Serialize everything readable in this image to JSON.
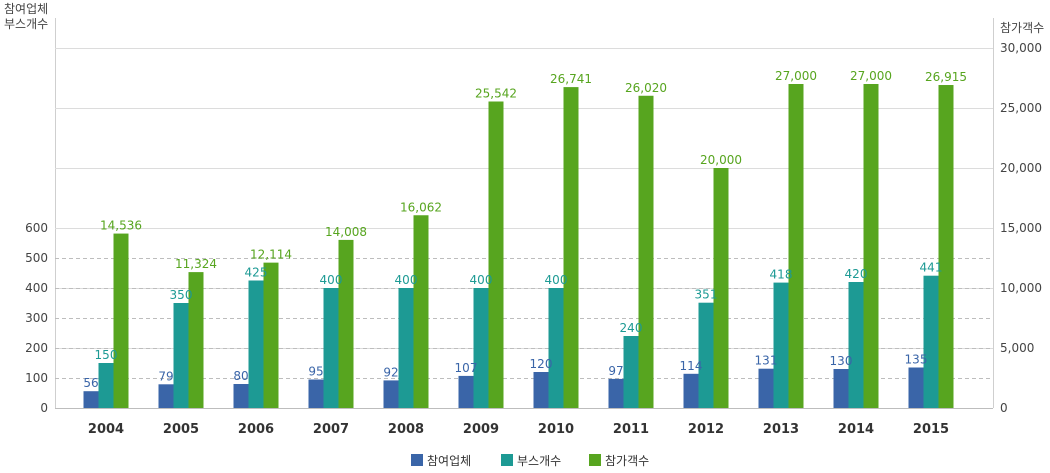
{
  "chart_data": {
    "type": "bar",
    "title": "",
    "categories": [
      "2004",
      "2005",
      "2006",
      "2007",
      "2008",
      "2009",
      "2010",
      "2011",
      "2012",
      "2013",
      "2014",
      "2015"
    ],
    "left_axis": {
      "label_lines": [
        "참여업체",
        "부스개수"
      ],
      "range": [
        0,
        600
      ],
      "ticks": [
        0,
        100,
        200,
        300,
        400,
        500,
        600
      ],
      "tick_labels": [
        "0",
        "100",
        "200",
        "300",
        "400",
        "500",
        "600"
      ]
    },
    "right_axis": {
      "label": "참가객수",
      "range": [
        0,
        30000
      ],
      "ticks": [
        0,
        5000,
        10000,
        15000,
        20000,
        25000,
        30000
      ],
      "tick_labels": [
        "0",
        "5,000",
        "10,000",
        "15,000",
        "20,000",
        "25,000",
        "30,000"
      ]
    },
    "series": [
      {
        "name": "참여업체",
        "axis": "left",
        "color": "#3a65a8",
        "label_color": "#3a65a8",
        "values": [
          56,
          79,
          80,
          95,
          92,
          107,
          120,
          97,
          114,
          131,
          130,
          135
        ],
        "value_labels": [
          "56",
          "79",
          "80",
          "95",
          "92",
          "107",
          "120",
          "97",
          "114",
          "131",
          "130",
          "135"
        ]
      },
      {
        "name": "부스개수",
        "axis": "left",
        "color": "#1d9a94",
        "label_color": "#1d9a94",
        "values": [
          150,
          350,
          425,
          400,
          400,
          400,
          400,
          240,
          351,
          418,
          420,
          441
        ],
        "value_labels": [
          "150",
          "350",
          "425",
          "400",
          "400",
          "400",
          "400",
          "240",
          "351",
          "418",
          "420",
          "441"
        ]
      },
      {
        "name": "참가객수",
        "axis": "right",
        "color": "#57a51f",
        "label_color": "#57a51f",
        "values": [
          14536,
          11324,
          12114,
          14008,
          16062,
          25542,
          26741,
          26020,
          20000,
          27000,
          27000,
          26915
        ],
        "value_labels": [
          "14,536",
          "11,324",
          "12,114",
          "14,008",
          "16,062",
          "25,542",
          "26,741",
          "26,020",
          "20,000",
          "27,000",
          "27,000",
          "26,915"
        ]
      }
    ],
    "grid": true,
    "legend": "bottom-center"
  }
}
